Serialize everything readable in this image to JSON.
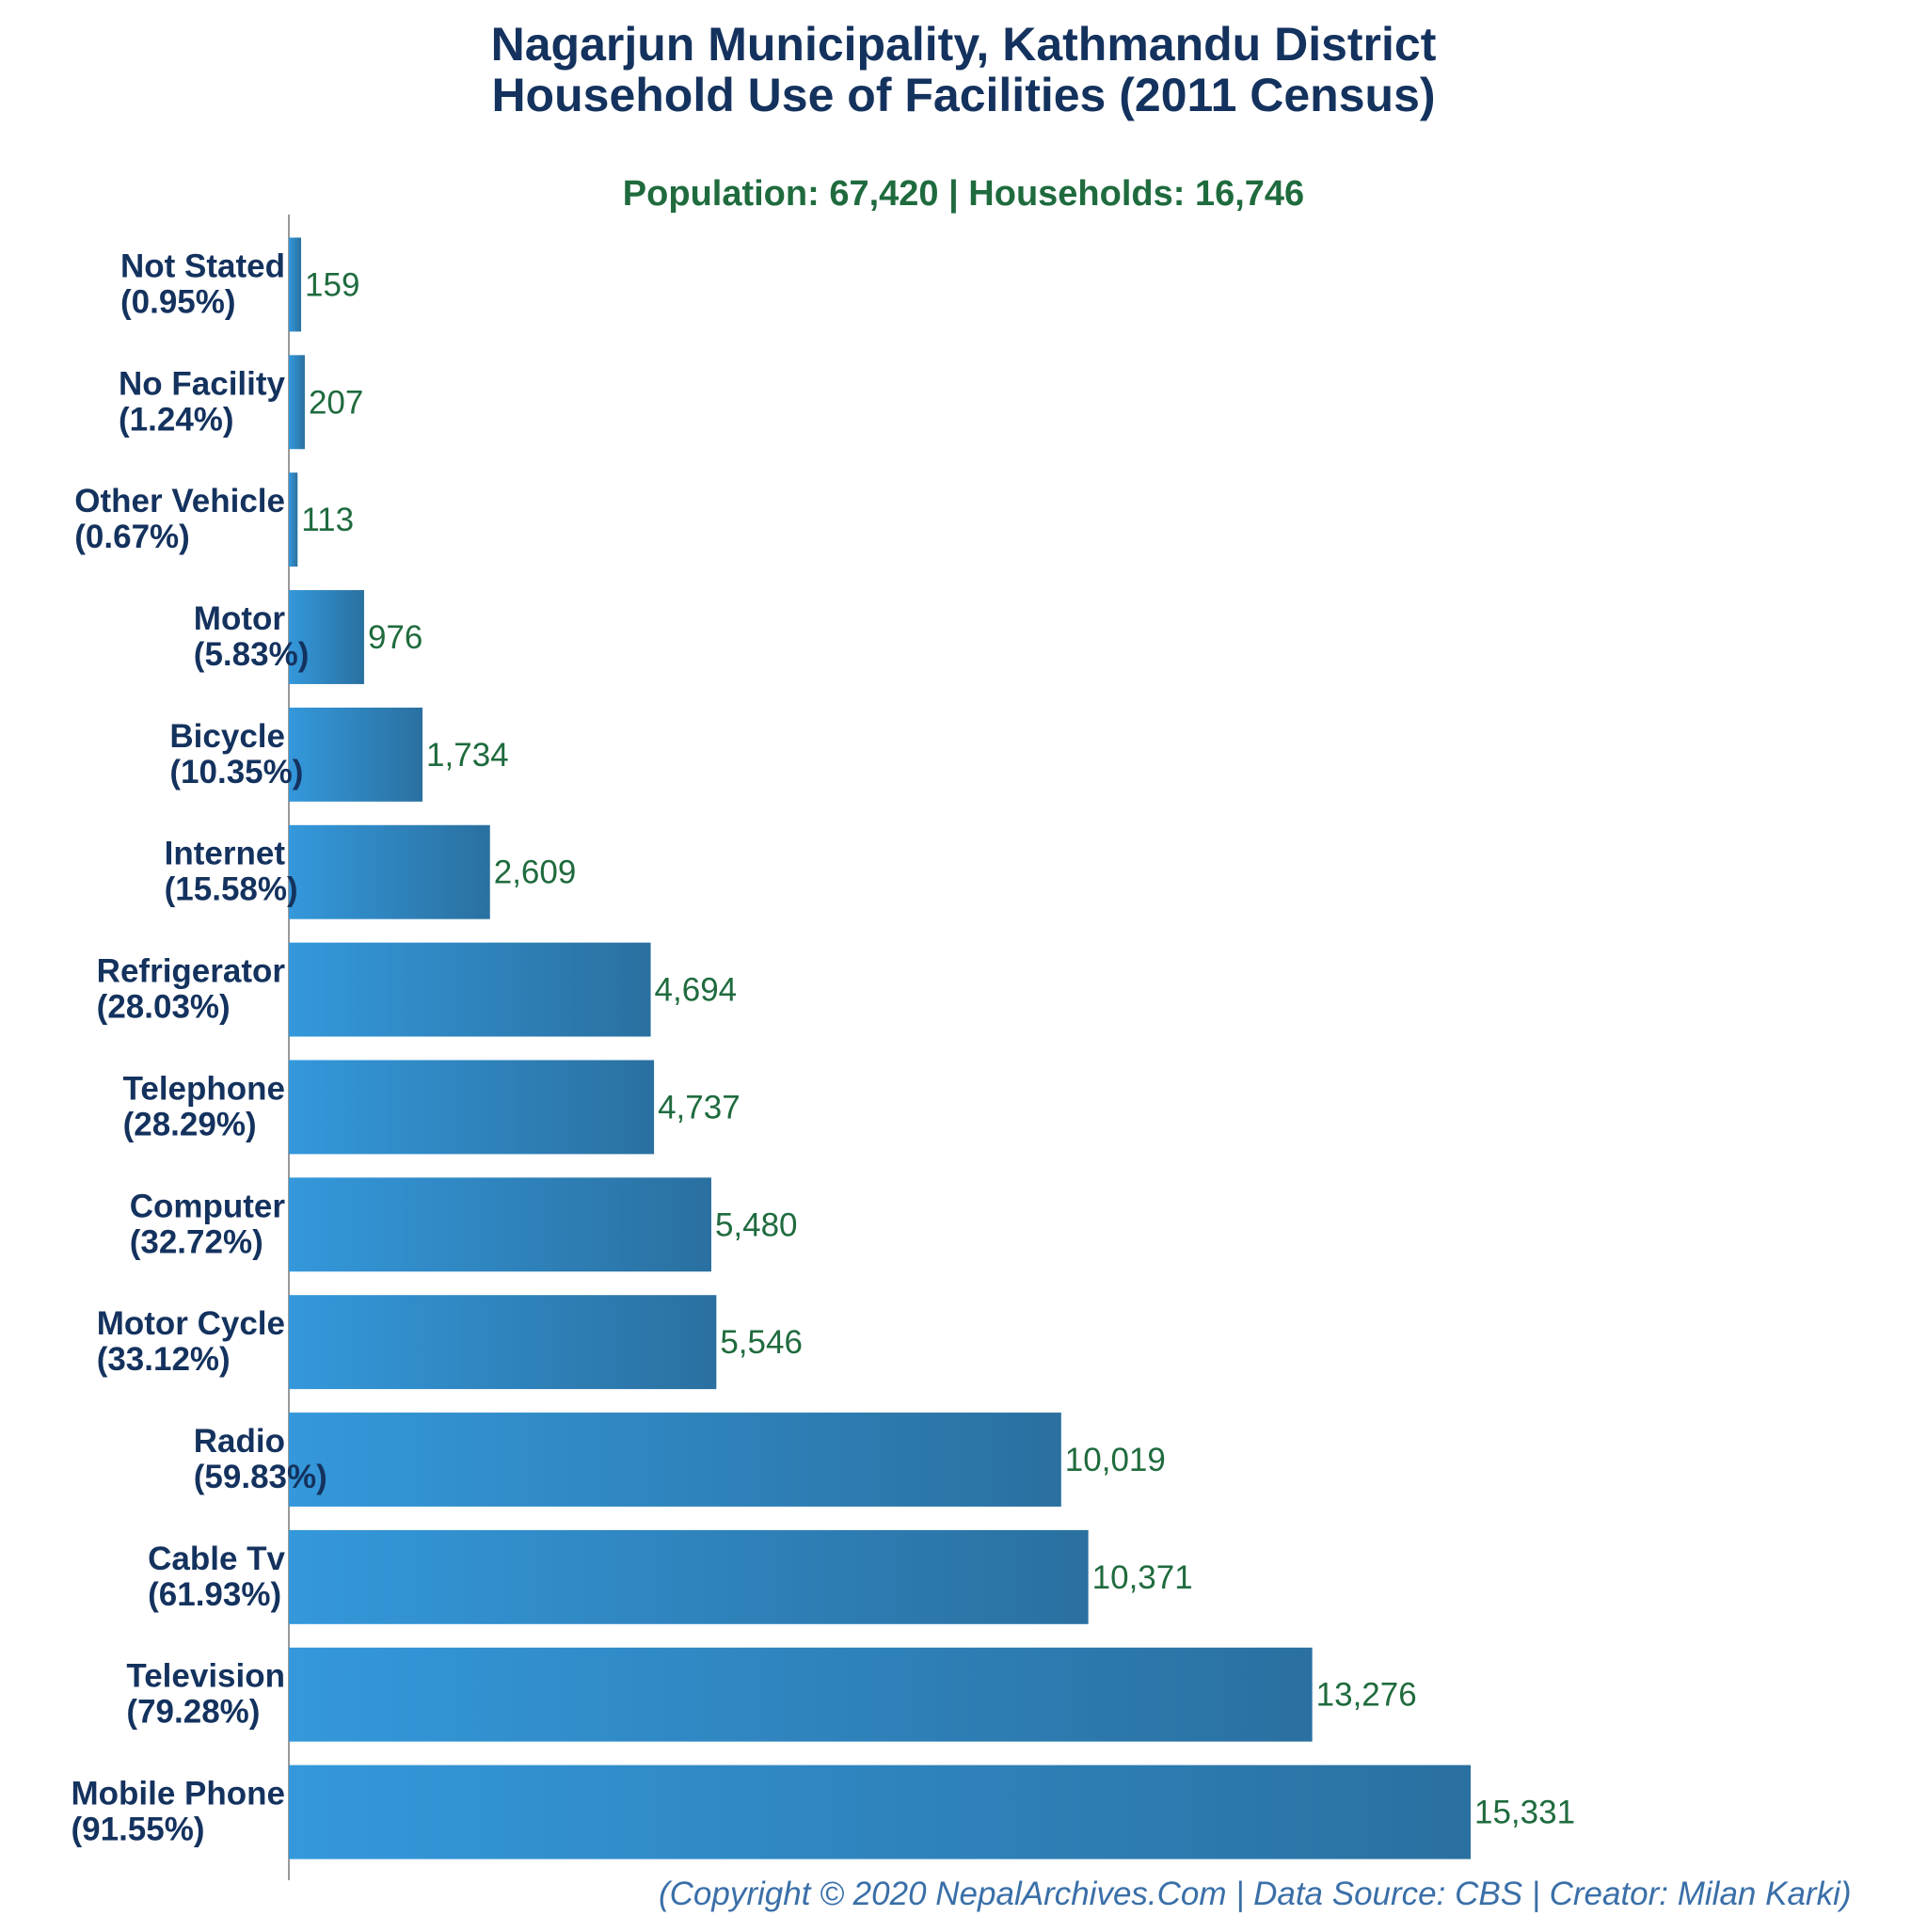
{
  "chart_data": {
    "type": "bar",
    "orientation": "horizontal",
    "title": [
      "Nagarjun Municipality, Kathmandu District",
      "Household Use of Facilities (2011 Census)"
    ],
    "subtitle": "Population: 67,420 | Households: 16,746",
    "footer": "(Copyright © 2020 NepalArchives.Com | Data Source: CBS | Creator: Milan Karki)",
    "categories": [
      {
        "name": "Not Stated",
        "pct": "(0.95%)",
        "value": 159,
        "value_label": "159"
      },
      {
        "name": "No Facility",
        "pct": "(1.24%)",
        "value": 207,
        "value_label": "207"
      },
      {
        "name": "Other Vehicle",
        "pct": "(0.67%)",
        "value": 113,
        "value_label": "113"
      },
      {
        "name": "Motor",
        "pct": "(5.83%)",
        "value": 976,
        "value_label": "976"
      },
      {
        "name": "Bicycle",
        "pct": "(10.35%)",
        "value": 1734,
        "value_label": "1,734"
      },
      {
        "name": "Internet",
        "pct": "(15.58%)",
        "value": 2609,
        "value_label": "2,609"
      },
      {
        "name": "Refrigerator",
        "pct": "(28.03%)",
        "value": 4694,
        "value_label": "4,694"
      },
      {
        "name": "Telephone",
        "pct": "(28.29%)",
        "value": 4737,
        "value_label": "4,737"
      },
      {
        "name": "Computer",
        "pct": "(32.72%)",
        "value": 5480,
        "value_label": "5,480"
      },
      {
        "name": "Motor Cycle",
        "pct": "(33.12%)",
        "value": 5546,
        "value_label": "5,546"
      },
      {
        "name": "Radio",
        "pct": "(59.83%)",
        "value": 10019,
        "value_label": "10,019"
      },
      {
        "name": "Cable Tv",
        "pct": "(61.93%)",
        "value": 10371,
        "value_label": "10,371"
      },
      {
        "name": "Television",
        "pct": "(79.28%)",
        "value": 13276,
        "value_label": "13,276"
      },
      {
        "name": "Mobile Phone",
        "pct": "(91.55%)",
        "value": 15331,
        "value_label": "15,331"
      }
    ],
    "xlim": [
      0,
      15331
    ],
    "colors": {
      "bar_light": "#3498db",
      "bar_dark": "#2a70a0",
      "title": "#14325e",
      "subtitle": "#1f6b3e",
      "footer": "#3a6fa8",
      "axis": "#999999"
    }
  }
}
